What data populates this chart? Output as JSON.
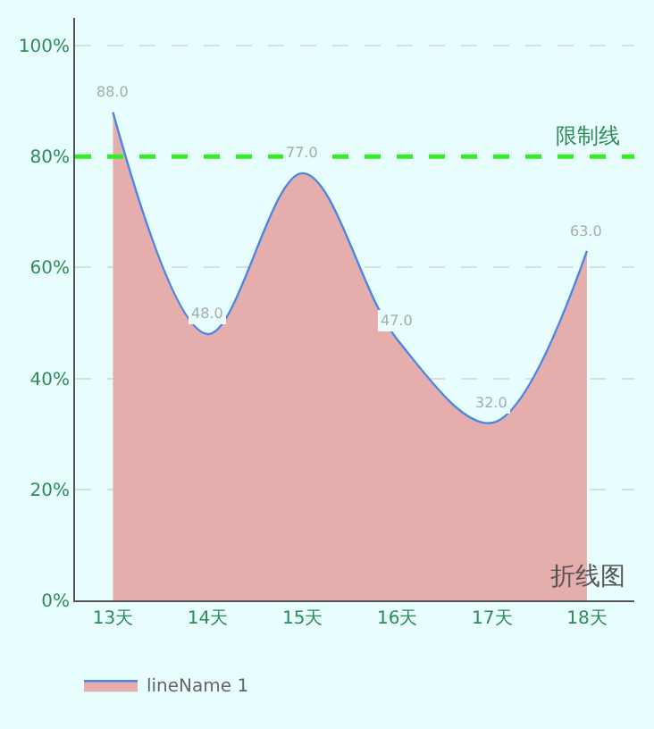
{
  "chart_data": {
    "type": "area",
    "categories": [
      "13天",
      "14天",
      "15天",
      "16天",
      "17天",
      "18天"
    ],
    "series": [
      {
        "name": "lineName 1",
        "color": "#e6adad",
        "values": [
          88,
          48,
          77,
          47,
          32,
          63
        ],
        "value_labels": [
          "88.0",
          "48.0",
          "77.0",
          "47.0",
          "32.0",
          "63.0"
        ]
      }
    ],
    "ylim": [
      0,
      105
    ],
    "yticks": [
      {
        "value": 0,
        "label": "0%"
      },
      {
        "value": 20,
        "label": "20%"
      },
      {
        "value": 40,
        "label": "40%"
      },
      {
        "value": 60,
        "label": "60%"
      },
      {
        "value": 80,
        "label": "80%"
      },
      {
        "value": 100,
        "label": "100%"
      }
    ],
    "grid": "y",
    "legend": "bottom left",
    "marker": "none",
    "ref_lines": [
      {
        "axis": "y",
        "value": 80,
        "label": "限制线",
        "color": "#33ee22",
        "line_style": "dashed"
      }
    ],
    "annotations": [
      "折线图"
    ]
  }
}
